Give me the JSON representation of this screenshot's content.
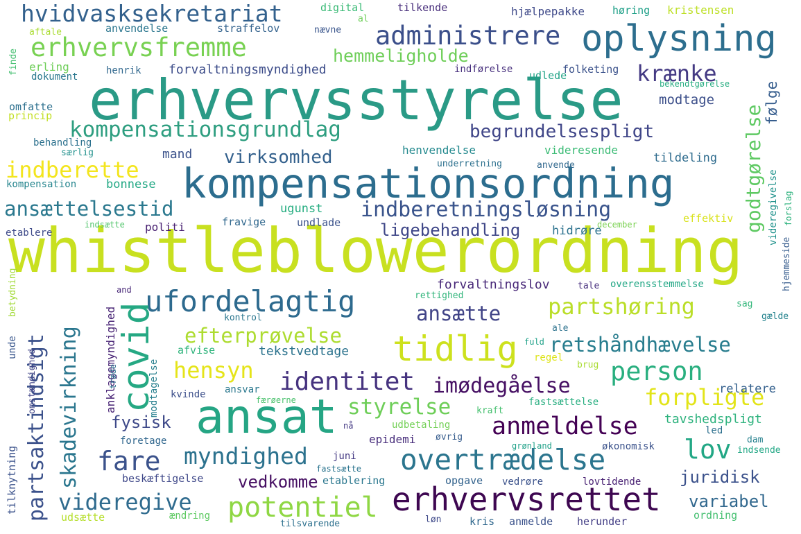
{
  "words": [
    {
      "text": "whistleblowerordning",
      "color": "#c8e020"
    },
    {
      "text": "erhvervsstyrelse",
      "color": "#2a9a86"
    },
    {
      "text": "kompensationsordning",
      "color": "#2c6d8e"
    },
    {
      "text": "ansat",
      "color": "#25a584"
    },
    {
      "text": "erhvervsrettet",
      "color": "#3e0751"
    },
    {
      "text": "oplysning",
      "color": "#2d6e8e"
    },
    {
      "text": "administrere",
      "color": "#3b4f8a"
    },
    {
      "text": "tidlig",
      "color": "#cde11d"
    },
    {
      "text": "ufordelagtig",
      "color": "#2d6a8e"
    },
    {
      "text": "covid",
      "color": "#25a883"
    },
    {
      "text": "overtrædelse",
      "color": "#2b758e"
    },
    {
      "text": "erhvervsfremme",
      "color": "#78d152"
    },
    {
      "text": "hvidvasksekretariat",
      "color": "#33618d"
    },
    {
      "text": "kompensationsgrundlag",
      "color": "#2e9e80"
    },
    {
      "text": "indberetningsløsning",
      "color": "#3a548c"
    },
    {
      "text": "ansættelsestid",
      "color": "#2a788e"
    },
    {
      "text": "indberette",
      "color": "#f3e51e"
    },
    {
      "text": "anmeldelse",
      "color": "#440154"
    },
    {
      "text": "partsaktindsigt",
      "color": "#3b518b"
    },
    {
      "text": "skadevirkning",
      "color": "#2a768e"
    },
    {
      "text": "fare",
      "color": "#3b528b"
    },
    {
      "text": "potentiel",
      "color": "#8fd744"
    },
    {
      "text": "videregive",
      "color": "#2f6b8e"
    },
    {
      "text": "identitet",
      "color": "#46337f"
    },
    {
      "text": "partshøring",
      "color": "#bade28"
    },
    {
      "text": "person",
      "color": "#29af7f"
    },
    {
      "text": "hensyn",
      "color": "#e5e419"
    },
    {
      "text": "styrelse",
      "color": "#6ece58"
    },
    {
      "text": "forpligte",
      "color": "#e2e418"
    },
    {
      "text": "lov",
      "color": "#22a785"
    },
    {
      "text": "myndighed",
      "color": "#2c728e"
    },
    {
      "text": "retshåndhævelse",
      "color": "#287d8e"
    },
    {
      "text": "efterprøvelse",
      "color": "#addc30"
    },
    {
      "text": "imødegåelse",
      "color": "#471164"
    },
    {
      "text": "godtgørelse",
      "color": "#5ec962"
    },
    {
      "text": "begrundelsespligt",
      "color": "#404688"
    },
    {
      "text": "krænke",
      "color": "#443a83"
    },
    {
      "text": "hemmeligholde",
      "color": "#6ece58"
    },
    {
      "text": "ansætte",
      "color": "#414487"
    },
    {
      "text": "virksomhed",
      "color": "#34618d"
    },
    {
      "text": "ligebehandling",
      "color": "#3f4788"
    },
    {
      "text": "juridisk",
      "color": "#3b518b"
    },
    {
      "text": "vedkomme",
      "color": "#471063"
    },
    {
      "text": "fysisk",
      "color": "#3e4989"
    },
    {
      "text": "variabel",
      "color": "#31688e"
    },
    {
      "text": "følge",
      "color": "#365d8d"
    },
    {
      "text": "modtage",
      "color": "#3c4f8a"
    },
    {
      "text": "forvaltningsmyndighed",
      "color": "#3d4d8a"
    },
    {
      "text": "forvaltningslov",
      "color": "#482878"
    },
    {
      "text": "tekstvedtage",
      "color": "#2c738e"
    },
    {
      "text": "anklagemyndighed",
      "color": "#482475"
    },
    {
      "text": "tavshedspligt",
      "color": "#2db27d"
    },
    {
      "text": "relatere",
      "color": "#34608d"
    },
    {
      "text": "tildeling",
      "color": "#2f6c8e"
    },
    {
      "text": "videresende",
      "color": "#3bbb75"
    },
    {
      "text": "henvendelse",
      "color": "#23898e"
    },
    {
      "text": "mand",
      "color": "#3b528b"
    },
    {
      "text": "bonnese",
      "color": "#22a884"
    },
    {
      "text": "politi",
      "color": "#482071"
    },
    {
      "text": "ugunst",
      "color": "#26ad81"
    },
    {
      "text": "fravige",
      "color": "#31688e"
    },
    {
      "text": "undlade",
      "color": "#3b528b"
    },
    {
      "text": "hidrøre",
      "color": "#2c728e"
    },
    {
      "text": "effektiv",
      "color": "#d8e219"
    },
    {
      "text": "december",
      "color": "#7ad151"
    },
    {
      "text": "kompensation",
      "color": "#25858e"
    },
    {
      "text": "etablere",
      "color": "#3e4a89"
    },
    {
      "text": "indsætte",
      "color": "#50c46a"
    },
    {
      "text": "behandling",
      "color": "#2c718e"
    },
    {
      "text": "særlig",
      "color": "#21918c"
    },
    {
      "text": "princip",
      "color": "#c2df23"
    },
    {
      "text": "omfatte",
      "color": "#2d708e"
    },
    {
      "text": "dokument",
      "color": "#2a788e"
    },
    {
      "text": "erling",
      "color": "#6ece58"
    },
    {
      "text": "henrik",
      "color": "#31688e"
    },
    {
      "text": "udlede",
      "color": "#20a386"
    },
    {
      "text": "indførelse",
      "color": "#472f7d"
    },
    {
      "text": "folketing",
      "color": "#3b528b"
    },
    {
      "text": "bekendtgørelse",
      "color": "#27ad81"
    },
    {
      "text": "aftale",
      "color": "#aadc32"
    },
    {
      "text": "anvendelse",
      "color": "#2a768e"
    },
    {
      "text": "straffelov",
      "color": "#33628d"
    },
    {
      "text": "nævne",
      "color": "#39558c"
    },
    {
      "text": "digital",
      "color": "#3aba76"
    },
    {
      "text": "al",
      "color": "#6ece58"
    },
    {
      "text": "tilkende",
      "color": "#472d7b"
    },
    {
      "text": "hjælpepakke",
      "color": "#3e4989"
    },
    {
      "text": "høring",
      "color": "#1fa088"
    },
    {
      "text": "kristensen",
      "color": "#bddf26"
    },
    {
      "text": "finde",
      "color": "#44bf70"
    },
    {
      "text": "anvende",
      "color": "#31688e"
    },
    {
      "text": "underretning",
      "color": "#2d708e"
    },
    {
      "text": "videregivelse",
      "color": "#20928c"
    },
    {
      "text": "forslag",
      "color": "#2db27d"
    },
    {
      "text": "hjemmeside",
      "color": "#365c8d"
    },
    {
      "text": "overensstemmelse",
      "color": "#22a785"
    },
    {
      "text": "tale",
      "color": "#472f7d"
    },
    {
      "text": "sag",
      "color": "#32b67a"
    },
    {
      "text": "gælde",
      "color": "#25838e"
    },
    {
      "text": "kontrol",
      "color": "#2a768e"
    },
    {
      "text": "rettighed",
      "color": "#31b57b"
    },
    {
      "text": "ale",
      "color": "#2c728e"
    },
    {
      "text": "fuld",
      "color": "#1fa188"
    },
    {
      "text": "regel",
      "color": "#dde318"
    },
    {
      "text": "brug",
      "color": "#aadc32"
    },
    {
      "text": "afvise",
      "color": "#2fb47c"
    },
    {
      "text": "ansvar",
      "color": "#2a788e"
    },
    {
      "text": "kvinde",
      "color": "#3c4f8a"
    },
    {
      "text": "færøerne",
      "color": "#4ac16d"
    },
    {
      "text": "fastsættelse",
      "color": "#28ae80"
    },
    {
      "text": "kraft",
      "color": "#46c06f"
    },
    {
      "text": "udbetaling",
      "color": "#73d056"
    },
    {
      "text": "nå",
      "color": "#443983"
    },
    {
      "text": "led",
      "color": "#2d708e"
    },
    {
      "text": "dam",
      "color": "#26818e"
    },
    {
      "text": "epidemi",
      "color": "#472d7b"
    },
    {
      "text": "øvrig",
      "color": "#365c8d"
    },
    {
      "text": "grønland",
      "color": "#1fa188"
    },
    {
      "text": "økonomisk",
      "color": "#3b528b"
    },
    {
      "text": "indsende",
      "color": "#22a785"
    },
    {
      "text": "foretage",
      "color": "#31678e"
    },
    {
      "text": "juni",
      "color": "#443983"
    },
    {
      "text": "fastsætte",
      "color": "#2b748e"
    },
    {
      "text": "beskæftigelse",
      "color": "#3f4889"
    },
    {
      "text": "etablering",
      "color": "#2a778e"
    },
    {
      "text": "opgave",
      "color": "#33638d"
    },
    {
      "text": "vedrøre",
      "color": "#3b528b"
    },
    {
      "text": "lovtidende",
      "color": "#482173"
    },
    {
      "text": "udsætte",
      "color": "#b5de2b"
    },
    {
      "text": "ændring",
      "color": "#5ec962"
    },
    {
      "text": "kris",
      "color": "#31688e"
    },
    {
      "text": "anmelde",
      "color": "#3b528b"
    },
    {
      "text": "herunder",
      "color": "#433e85"
    },
    {
      "text": "ordning",
      "color": "#44bf70"
    },
    {
      "text": "løn",
      "color": "#3e4989"
    },
    {
      "text": "tilsvarende",
      "color": "#2d708e"
    },
    {
      "text": "tilknytning",
      "color": "#3b528b"
    },
    {
      "text": "omstændighed",
      "color": "#414487"
    },
    {
      "text": "unde",
      "color": "#39568c"
    },
    {
      "text": "betydning",
      "color": "#a2da37"
    },
    {
      "text": "and",
      "color": "#482878"
    },
    {
      "text": "modtagelse",
      "color": "#277f8e"
    },
    {
      "text": "træde",
      "color": "#2d708e"
    }
  ]
}
